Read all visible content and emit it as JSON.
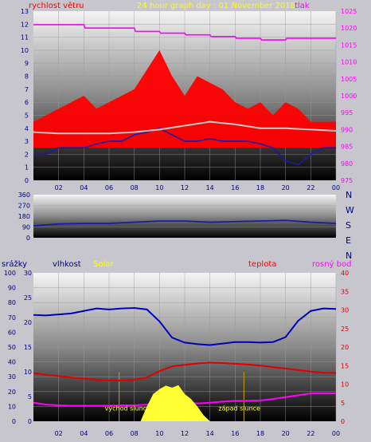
{
  "colors": {
    "frame": "#c6c6cc",
    "title": "#ffff00",
    "wind_label": "#ff0000",
    "pressure": "#ff00ff",
    "axis_text": "#000080",
    "wind": "#ff0000",
    "gust_dir_line": "#1a1aa8",
    "avg_line": "#c8c8c8",
    "humidity": "#0000c0",
    "temperature": "#e00000",
    "dewpoint": "#ff00ff",
    "solar_fill": "#ffff33",
    "sun_marker": "#c8a000"
  },
  "chart_data": [
    {
      "type": "line",
      "title": "24 hour graph day : 01 November 2018",
      "left_label": "rychlost větru",
      "right_label": "tlak",
      "x_ticks": [
        "02",
        "04",
        "06",
        "08",
        "10",
        "12",
        "14",
        "16",
        "18",
        "20",
        "22",
        "00"
      ],
      "y_left_ticks": [
        "0",
        "1",
        "2",
        "3",
        "4",
        "5",
        "6",
        "7",
        "8",
        "9",
        "10",
        "11",
        "12",
        "13"
      ],
      "y_right_ticks": [
        "975",
        "980",
        "985",
        "990",
        "995",
        "1000",
        "1005",
        "1010",
        "1015",
        "1020",
        "1025"
      ],
      "ylim_left": [
        0,
        13
      ],
      "ylim_right": [
        975,
        1025
      ],
      "series": [
        {
          "id": "gust",
          "style": "area",
          "color_key": "wind",
          "x": [
            0,
            1,
            2,
            3,
            4,
            5,
            6,
            7,
            8,
            9,
            10,
            11,
            12,
            13,
            14,
            15,
            16,
            17,
            18,
            19,
            20,
            21,
            22,
            23,
            24
          ],
          "values": [
            4.5,
            5,
            5.5,
            6,
            6.5,
            5.5,
            6,
            6.5,
            7,
            8.5,
            10,
            8,
            6.5,
            8,
            7.5,
            7,
            6,
            5.5,
            6,
            5,
            6,
            5.5,
            4.5,
            4.5,
            4.5
          ]
        },
        {
          "id": "wind_avg",
          "style": "line",
          "color_key": "gust_dir_line",
          "x": [
            0,
            1,
            2,
            3,
            4,
            5,
            6,
            7,
            8,
            9,
            10,
            11,
            12,
            13,
            14,
            15,
            16,
            17,
            18,
            19,
            20,
            21,
            22,
            23,
            24
          ],
          "values": [
            2,
            2,
            2.5,
            2.5,
            2.5,
            2.8,
            3,
            3,
            3.5,
            3.7,
            4,
            3.5,
            3,
            3,
            3.2,
            3,
            3,
            3,
            2.8,
            2.5,
            1.5,
            1.2,
            2,
            2.5,
            2.5
          ]
        },
        {
          "id": "wind_mean",
          "style": "line",
          "color_key": "avg_line",
          "x": [
            0,
            2,
            4,
            6,
            8,
            10,
            12,
            14,
            16,
            18,
            20,
            22,
            24
          ],
          "values": [
            3.7,
            3.6,
            3.6,
            3.6,
            3.7,
            3.9,
            4.2,
            4.5,
            4.3,
            4.0,
            4.0,
            3.9,
            3.8
          ]
        },
        {
          "id": "pressure",
          "axis": "right",
          "style": "line",
          "color_key": "pressure",
          "x": [
            0,
            4,
            4.1,
            8,
            8.1,
            10,
            10.1,
            12,
            12.1,
            14,
            14.1,
            16,
            16.1,
            18,
            18.1,
            20,
            20.1,
            24
          ],
          "values": [
            1021,
            1021,
            1020,
            1020,
            1019,
            1019,
            1018.5,
            1018.5,
            1018,
            1018,
            1017.5,
            1017.5,
            1017,
            1017,
            1016.5,
            1016.5,
            1017,
            1017
          ]
        }
      ]
    },
    {
      "type": "line",
      "title": "",
      "right_label": "N W S E N",
      "y_ticks": [
        "0",
        "90",
        "180",
        "270",
        "360"
      ],
      "ylim": [
        0,
        360
      ],
      "series": [
        {
          "id": "direction",
          "color_key": "gust_dir_line",
          "x": [
            0,
            2,
            4,
            6,
            8,
            10,
            12,
            14,
            16,
            18,
            20,
            22,
            24
          ],
          "values": [
            100,
            115,
            120,
            120,
            130,
            140,
            140,
            130,
            135,
            140,
            145,
            130,
            120
          ]
        }
      ]
    },
    {
      "type": "line",
      "left_labels": [
        "srážky",
        "vlhkost",
        "Solar"
      ],
      "right_labels": [
        "teplota",
        "rosný bod"
      ],
      "x_ticks": [
        "02",
        "04",
        "06",
        "08",
        "10",
        "12",
        "14",
        "16",
        "18",
        "20",
        "22",
        "00"
      ],
      "y_rain_ticks": [
        "0",
        "10",
        "20",
        "30",
        "40",
        "50",
        "60",
        "70",
        "80",
        "90",
        "100"
      ],
      "y_hum_ticks": [
        "0",
        "5",
        "10",
        "15",
        "20",
        "25",
        "30"
      ],
      "y_temp_ticks": [
        "0",
        "5",
        "10",
        "15",
        "20",
        "25",
        "30",
        "35",
        "40"
      ],
      "ylim_rain": [
        0,
        100
      ],
      "ylim_humidity": [
        0,
        30
      ],
      "ylim_temp": [
        0,
        40
      ],
      "annotations": [
        "východ slunce",
        "západ slunce"
      ],
      "sunrise_hour": 6.8,
      "sunset_hour": 16.7,
      "series": [
        {
          "id": "humidity",
          "axis": "humidity",
          "color_key": "humidity",
          "x": [
            0,
            1,
            2,
            3,
            4,
            5,
            6,
            7,
            8,
            9,
            10,
            11,
            12,
            13,
            14,
            15,
            16,
            17,
            18,
            19,
            20,
            21,
            22,
            23,
            24
          ],
          "values": [
            21.5,
            21.4,
            21.6,
            21.8,
            22.3,
            22.8,
            22.6,
            22.8,
            22.9,
            22.6,
            20.2,
            16.9,
            15.9,
            15.6,
            15.4,
            15.7,
            16.0,
            16.0,
            15.9,
            16.0,
            17.0,
            20.3,
            22.3,
            22.8,
            22.7
          ]
        },
        {
          "id": "temperature",
          "axis": "temp",
          "color_key": "temperature",
          "x": [
            0,
            1,
            2,
            3,
            4,
            5,
            6,
            7,
            8,
            9,
            10,
            11,
            12,
            13,
            14,
            15,
            16,
            17,
            18,
            19,
            20,
            21,
            22,
            23,
            24
          ],
          "values": [
            13.0,
            12.5,
            12.2,
            11.8,
            11.5,
            11.2,
            11.0,
            11.0,
            11.2,
            11.8,
            13.5,
            14.8,
            15.2,
            15.6,
            15.8,
            15.7,
            15.5,
            15.3,
            15.0,
            14.6,
            14.2,
            13.8,
            13.4,
            13.1,
            13.0
          ]
        },
        {
          "id": "dewpoint",
          "axis": "temp",
          "color_key": "dewpoint",
          "x": [
            0,
            1,
            2,
            3,
            4,
            5,
            6,
            7,
            8,
            9,
            10,
            11,
            12,
            13,
            14,
            15,
            16,
            17,
            18,
            19,
            20,
            21,
            22,
            23,
            24
          ],
          "values": [
            5.0,
            4.5,
            4.3,
            4.2,
            4.2,
            4.2,
            4.2,
            4.3,
            4.3,
            4.5,
            5.0,
            5.2,
            5.0,
            4.8,
            5.0,
            5.3,
            5.5,
            5.5,
            5.6,
            6.0,
            6.5,
            7.0,
            7.5,
            7.5,
            7.5
          ]
        },
        {
          "id": "solar",
          "axis": "humidity",
          "style": "area",
          "color_key": "solar_fill",
          "x": [
            8.5,
            9,
            9.5,
            10,
            10.5,
            11,
            11.5,
            12,
            12.5,
            13,
            13.5,
            14
          ],
          "values": [
            0,
            3,
            5.5,
            6.5,
            7.2,
            6.8,
            7.3,
            5.5,
            4.5,
            3,
            1.2,
            0
          ]
        }
      ]
    }
  ]
}
